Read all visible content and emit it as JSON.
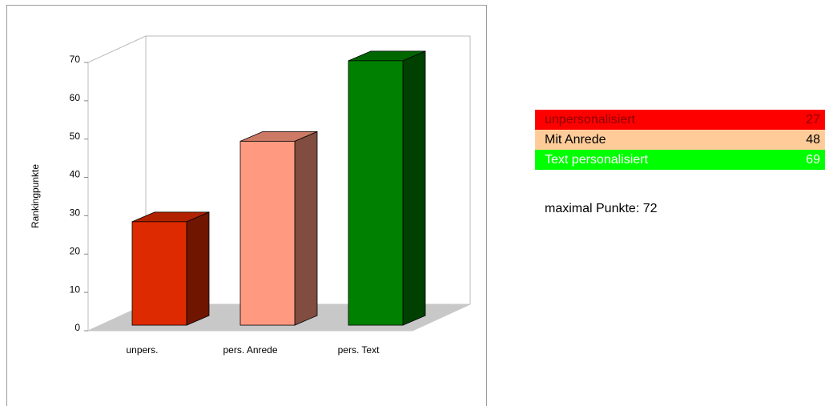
{
  "chart_data": {
    "type": "bar3d",
    "y_label": "Rankingpunkte",
    "categories": [
      "unpers.",
      "pers. Anrede",
      "pers. Text"
    ],
    "values": [
      27,
      48,
      69
    ],
    "colors": [
      "#dd2a00",
      "#ff9980",
      "#008000"
    ],
    "ylim": [
      0,
      70
    ],
    "yticks": [
      0,
      10,
      20,
      30,
      40,
      50,
      60,
      70
    ],
    "grid": false
  },
  "legend_table": {
    "rows": [
      {
        "label": "unpersonalisiert",
        "value": "27",
        "color": "#ff0000",
        "text_color": "#8b0000"
      },
      {
        "label": "Mit Anrede",
        "value": "48",
        "color": "#ffcc99",
        "text_color": "#000000"
      },
      {
        "label": "Text personalisiert",
        "value": "69",
        "color": "#00ff00",
        "text_color": "#ffffff"
      }
    ],
    "note": "maximal Punkte: 72"
  }
}
